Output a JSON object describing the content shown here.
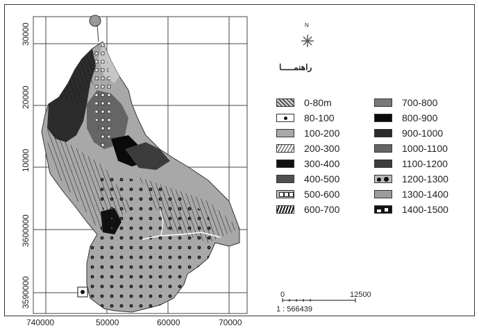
{
  "map": {
    "north_label": "N",
    "title": "راهنمـــــا",
    "y_ticks": [
      "30000",
      "20000",
      "10000",
      "3600000",
      "3590000"
    ],
    "x_ticks": [
      "740000",
      "50000",
      "60000",
      "70000"
    ],
    "scale": {
      "start": "0",
      "end": "12500",
      "ratio": "1 : 566439"
    }
  },
  "legend": {
    "left": [
      {
        "label": "0-80m",
        "pattern": "dither",
        "color": "#9a9a9a"
      },
      {
        "label": "80-100",
        "pattern": "dot",
        "color": "#ffffff"
      },
      {
        "label": "100-200",
        "pattern": "solid",
        "color": "#a8a8a8"
      },
      {
        "label": "200-300",
        "pattern": "hatch-light",
        "color": "#ffffff"
      },
      {
        "label": "300-400",
        "pattern": "solid",
        "color": "#111111"
      },
      {
        "label": "400-500",
        "pattern": "solid",
        "color": "#505050"
      },
      {
        "label": "500-600",
        "pattern": "squares",
        "color": "#bdbdbd"
      },
      {
        "label": "600-700",
        "pattern": "hatch-heavy",
        "color": "#ffffff"
      }
    ],
    "right": [
      {
        "label": "700-800",
        "pattern": "solid",
        "color": "#7a7a7a"
      },
      {
        "label": "800-900",
        "pattern": "solid",
        "color": "#0a0a0a"
      },
      {
        "label": "900-1000",
        "pattern": "solid",
        "color": "#2c2c2c"
      },
      {
        "label": "1000-1100",
        "pattern": "solid",
        "color": "#656565"
      },
      {
        "label": "1100-1200",
        "pattern": "solid",
        "color": "#3c3c3c"
      },
      {
        "label": "1200-1300",
        "pattern": "big-dots",
        "color": "#7d7d7d"
      },
      {
        "label": "1300-1400",
        "pattern": "solid",
        "color": "#9c9c9c"
      },
      {
        "label": "1400-1500",
        "pattern": "black-white",
        "color": "#111111"
      }
    ]
  }
}
